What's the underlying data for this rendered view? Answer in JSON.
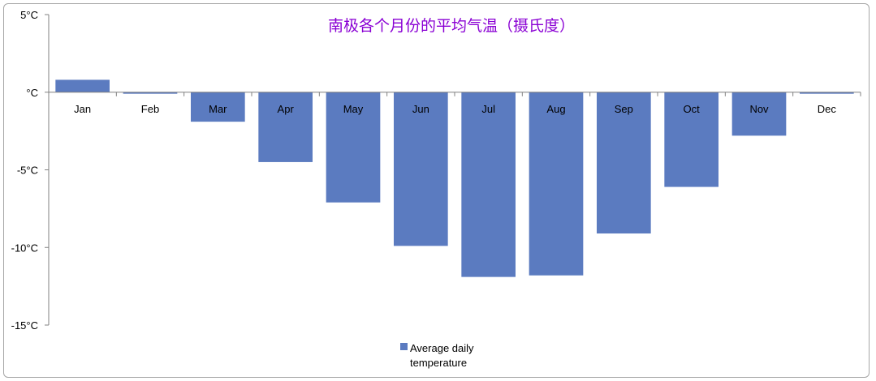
{
  "chart_data": {
    "type": "bar",
    "title": "南极各个月份的平均气温（摄氏度）",
    "categories": [
      "Jan",
      "Feb",
      "Mar",
      "Apr",
      "May",
      "Jun",
      "Jul",
      "Aug",
      "Sep",
      "Oct",
      "Nov",
      "Dec"
    ],
    "series": [
      {
        "name": "Average daily temperature",
        "name_lines": [
          "Average daily",
          "temperature"
        ],
        "values": [
          0.8,
          -0.1,
          -1.9,
          -4.5,
          -7.1,
          -9.9,
          -11.9,
          -11.8,
          -9.1,
          -6.1,
          -2.8,
          -0.1
        ],
        "color": "#5b7bc0"
      }
    ],
    "ylim": [
      -15,
      5
    ],
    "yticks": [
      5,
      0,
      -5,
      -10,
      -15
    ],
    "ytick_labels": [
      "5°C",
      "°C",
      "-5°C",
      "-10°C",
      "-15°C"
    ],
    "xlabel": "",
    "ylabel": "",
    "grid": false,
    "legend_position": "bottom"
  },
  "colors": {
    "title": "#8a00d4",
    "bar": "#5b7bc0",
    "axis": "#808080",
    "border": "#a6a6a6"
  }
}
